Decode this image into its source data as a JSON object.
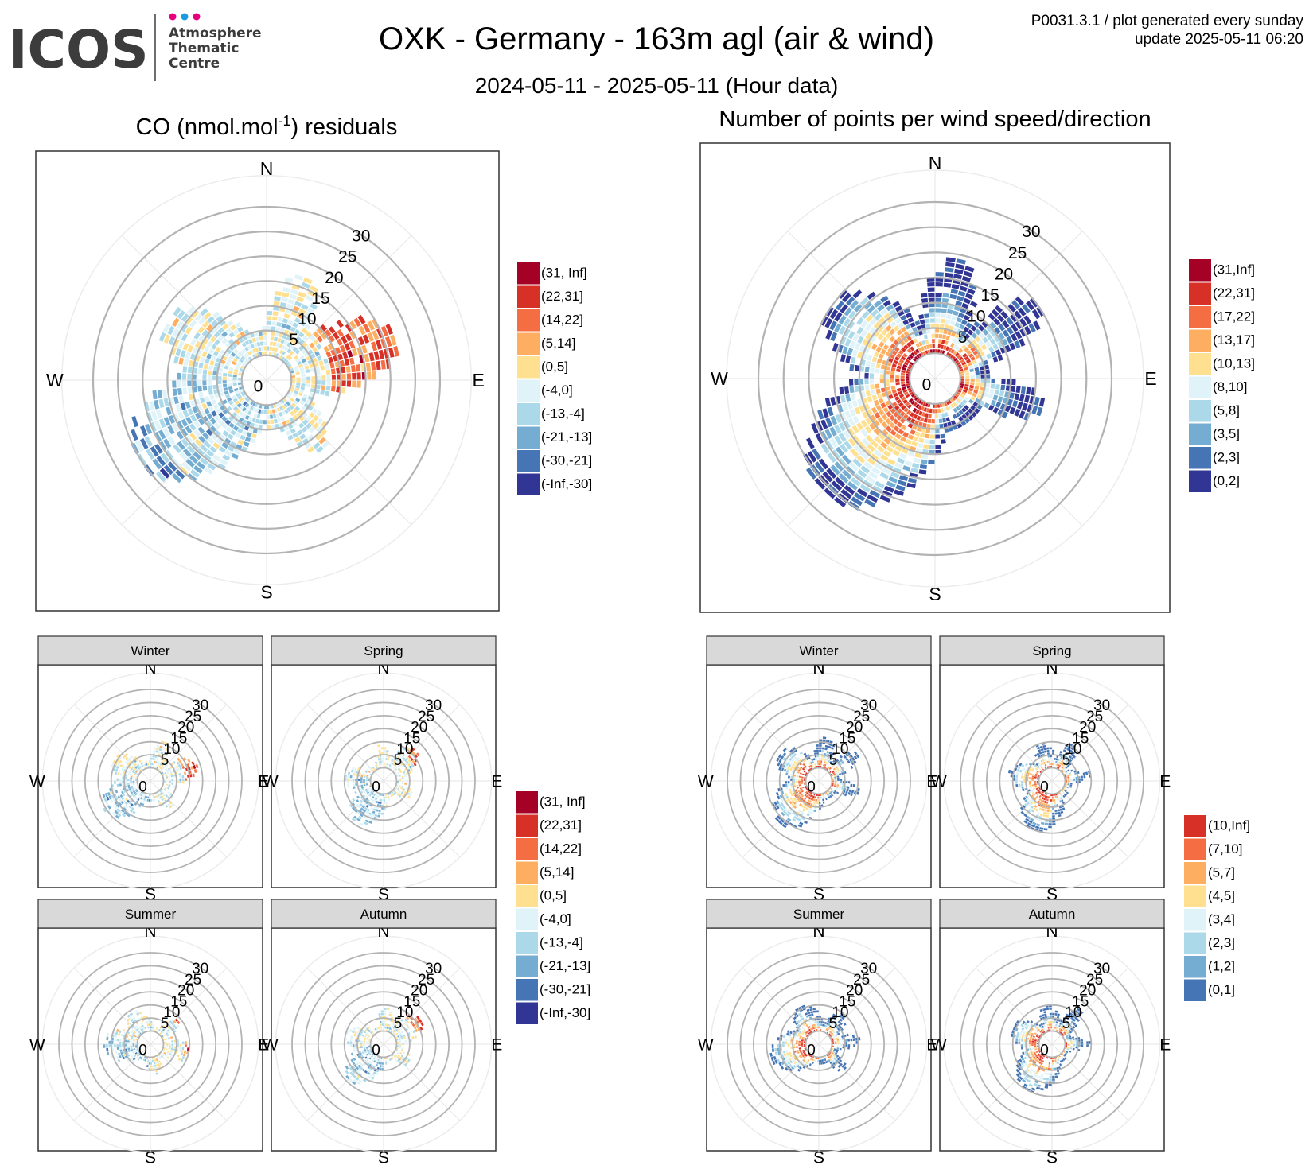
{
  "header": {
    "logo": {
      "wordmark": "ICOS",
      "line1": "Atmosphere",
      "line2": "Thematic",
      "line3": "Centre"
    },
    "title": "OXK - Germany - 163m agl (air & wind)",
    "subtitle": "2024-05-11 - 2025-05-11 (Hour data)",
    "meta_line1": "P0031.3.1 / plot generated every sunday",
    "meta_line2": "update  2025-05-11 06:20"
  },
  "colors": {
    "diverging": [
      "#a50026",
      "#d73027",
      "#f46d43",
      "#fdae61",
      "#fee090",
      "#e0f3f8",
      "#abd9e9",
      "#74add1",
      "#4575b4",
      "#313695"
    ],
    "frame": "#333333",
    "ring": "#b3b3b3",
    "strip_bg": "#d9d9d9"
  },
  "compass": {
    "n": "N",
    "e": "E",
    "s": "S",
    "w": "W"
  },
  "ring_labels": [
    "0",
    "5",
    "10",
    "15",
    "20",
    "25",
    "30"
  ],
  "legends": {
    "co": [
      "(31, Inf]",
      "(22,31]",
      "(14,22]",
      "(5,14]",
      "(0,5]",
      "(-4,0]",
      "(-13,-4]",
      "(-21,-13]",
      "(-30,-21]",
      "(-Inf,-30]"
    ],
    "points": [
      "(31,Inf]",
      "(22,31]",
      "(17,22]",
      "(13,17]",
      "(10,13]",
      "(8,10]",
      "(5,8]",
      "(3,5]",
      "(2,3]",
      "(0,2]"
    ],
    "seasonal_points": [
      "(10,Inf]",
      "(7,10]",
      "(5,7]",
      "(4,5]",
      "(3,4]",
      "(2,3]",
      "(1,2]",
      "(0,1]"
    ]
  },
  "chart_data": [
    {
      "type": "heatmap",
      "kind": "polar",
      "title_pre": "CO (nmol.mol",
      "title_sup": "-1",
      "title_post": ") residuals",
      "radial_axis": "wind speed",
      "rlim": [
        0,
        30
      ],
      "angular_axis": "wind direction",
      "dominant_sectors": [
        "E",
        "ENE",
        "SW",
        "WSW",
        "NNE"
      ],
      "legend": "co"
    },
    {
      "type": "heatmap",
      "kind": "polar",
      "title": "Number of points per wind speed/direction",
      "radial_axis": "wind speed",
      "rlim": [
        0,
        30
      ],
      "angular_axis": "wind direction",
      "dominant_sectors": [
        "W",
        "WSW",
        "SW",
        "NE"
      ],
      "legend": "points"
    },
    {
      "type": "heatmap",
      "kind": "polar",
      "group": "CO residuals",
      "panels": [
        "Winter",
        "Spring",
        "Summer",
        "Autumn"
      ],
      "rlim": [
        0,
        30
      ],
      "legend": "co"
    },
    {
      "type": "heatmap",
      "kind": "polar",
      "group": "Number of points",
      "panels": [
        "Winter",
        "Spring",
        "Summer",
        "Autumn"
      ],
      "rlim": [
        0,
        30
      ],
      "legend": "seasonal_points"
    }
  ]
}
